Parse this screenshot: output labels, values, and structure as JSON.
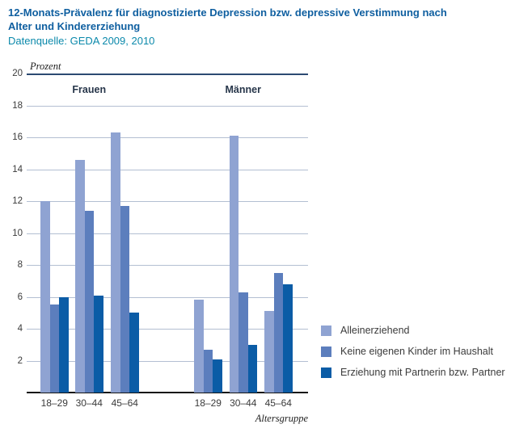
{
  "header": {
    "title": "12-Monats-Prävalenz für diagnostizierte Depression bzw. depressive Verstimmung nach Alter und Kindererziehung",
    "source": "Datenquelle: GEDA 2009, 2010"
  },
  "chart_data": {
    "type": "bar",
    "title": "12-Monats-Prävalenz für diagnostizierte Depression bzw. depressive Verstimmung nach Alter und Kindererziehung",
    "subtitle": "Datenquelle: GEDA 2009, 2010",
    "unit_label": "Prozent",
    "xlabel": "Altersgruppe",
    "ylim": [
      0,
      20
    ],
    "ytick_step": 2,
    "grid": true,
    "legend_position": "bottom-right",
    "panels": [
      {
        "label": "Frauen",
        "categories": [
          "18–29",
          "30–44",
          "45–64"
        ]
      },
      {
        "label": "Männer",
        "categories": [
          "18–29",
          "30–44",
          "45–64"
        ]
      }
    ],
    "series": [
      {
        "name": "Alleinerziehend",
        "color": "#8fa3d2",
        "values": [
          [
            12.0,
            14.6,
            16.3
          ],
          [
            5.8,
            16.1,
            5.1
          ]
        ]
      },
      {
        "name": "Keine eigenen Kinder im Haushalt",
        "color": "#5c7ebd",
        "values": [
          [
            5.5,
            11.4,
            11.7
          ],
          [
            2.7,
            6.3,
            7.5
          ]
        ]
      },
      {
        "name": "Erziehung mit Partnerin bzw. Partner",
        "color": "#0b5ca6",
        "values": [
          [
            6.0,
            6.1,
            5.0
          ],
          [
            2.1,
            3.0,
            6.8
          ]
        ]
      }
    ]
  },
  "colors": {
    "title": "#0f5fa0",
    "source": "#0b89ab",
    "gridline": "#b3bfd2",
    "top_rule": "#2c4a72",
    "axis": "#151515"
  }
}
